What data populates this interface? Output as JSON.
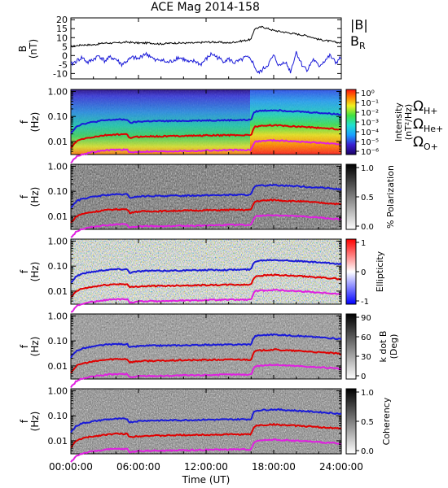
{
  "title": "ACE Mag 2014-158",
  "colors": {
    "total_field": "#000000",
    "br": "#1a1ad8",
    "h_plus": "#1a1ad8",
    "he_plus": "#e00000",
    "o_plus": "#e020e0"
  },
  "time_axis": {
    "label": "Time (UT)",
    "ticks": [
      "00:00:00",
      "06:00:00",
      "12:00:00",
      "18:00:00",
      "24:00:00"
    ],
    "range_hours": [
      0,
      24
    ]
  },
  "legend_top": {
    "b_total": "|B|",
    "b_r": "B",
    "b_r_sub": "R"
  },
  "legend_gyro": {
    "h_symbol": "Ω",
    "h_sub": "H+",
    "he_symbol": "Ω",
    "he_sub": "He+",
    "o_symbol": "Ω",
    "o_sub": "O+"
  },
  "freq_axis": {
    "label_top": "f",
    "label_bottom": "(Hz)",
    "ticks": [
      "1.00",
      "0.10",
      "0.01"
    ],
    "range_hz": [
      0.003,
      1.2
    ],
    "scale": "log"
  },
  "panels": [
    {
      "id": "B",
      "ylabel_top": "B",
      "ylabel_bottom": "(nT)",
      "yticks": [
        "20",
        "15",
        "10",
        "5",
        "0",
        "-5",
        "-10"
      ],
      "ylim": [
        -13,
        21
      ]
    },
    {
      "id": "intensity",
      "colorbar_title": "Intensity",
      "colorbar_unit": "(nT²/Hz)",
      "colorbar_ticks": [
        "10⁰",
        "10⁻¹",
        "10⁻²",
        "10⁻³",
        "10⁻⁴",
        "10⁻⁵",
        "10⁻⁶"
      ]
    },
    {
      "id": "polarization",
      "colorbar_title": "% Polarization",
      "colorbar_ticks": [
        "1.0",
        "0.5",
        "0.0"
      ]
    },
    {
      "id": "ellipticity",
      "colorbar_title": "Ellipticity",
      "colorbar_ticks": [
        "1",
        "0",
        "-1"
      ]
    },
    {
      "id": "kdotb",
      "colorbar_title": "k dot B",
      "colorbar_unit": "(Deg)",
      "colorbar_ticks": [
        "90",
        "60",
        "30",
        "0"
      ]
    },
    {
      "id": "coherency",
      "colorbar_title": "Coherency",
      "colorbar_ticks": [
        "1.0",
        "0.5",
        "0.0"
      ]
    }
  ],
  "chart_data": {
    "type": "line",
    "x_units": "hours (UT)",
    "b_total": {
      "x": [
        0,
        1,
        2,
        3,
        4,
        5,
        6,
        7,
        8,
        9,
        10,
        11,
        12,
        13,
        14,
        15,
        16,
        16.3,
        17,
        18,
        19,
        20,
        21,
        22,
        23,
        24
      ],
      "y": [
        5,
        6,
        6,
        7,
        7,
        7.5,
        7,
        7,
        6.5,
        7,
        7,
        7,
        7.5,
        7.5,
        7,
        8,
        9,
        15,
        16,
        14,
        13,
        12,
        11,
        9,
        8,
        7
      ]
    },
    "b_r": {
      "x": [
        0,
        0.5,
        1,
        1.5,
        2,
        2.5,
        3,
        3.5,
        4,
        4.5,
        5,
        5.5,
        6,
        6.5,
        7,
        7.5,
        8,
        8.5,
        9,
        9.5,
        10,
        10.5,
        11,
        11.5,
        12,
        12.5,
        13,
        13.5,
        14,
        14.5,
        15,
        15.5,
        16,
        16.3,
        16.6,
        17,
        17.5,
        18,
        18.5,
        19,
        19.5,
        20,
        20.5,
        21,
        21.5,
        22,
        22.5,
        23,
        23.5,
        24
      ],
      "y": [
        -5,
        -3,
        -1,
        -4,
        -2,
        0,
        -3,
        -1,
        -2,
        -5,
        -3,
        -1,
        -2,
        1,
        0,
        -3,
        -2,
        -4,
        -3,
        -1,
        -2,
        -4,
        -3,
        -5,
        -2,
        1,
        -1,
        -3,
        -2,
        -4,
        -3,
        -1,
        -2,
        -6,
        -10,
        -8,
        -5,
        0,
        -6,
        -3,
        -9,
        2,
        -5,
        -8,
        -2,
        -6,
        -3,
        0,
        -4,
        -1
      ]
    },
    "gyro_h_plus": {
      "x": [
        0,
        0.5,
        1,
        2,
        3,
        4,
        5,
        5.2,
        6,
        7,
        8,
        9,
        10,
        11,
        12,
        13,
        14,
        15,
        16,
        16.2,
        16.4,
        17,
        18,
        19,
        20,
        21,
        22,
        23,
        24
      ],
      "y": [
        0.022,
        0.04,
        0.05,
        0.06,
        0.07,
        0.075,
        0.075,
        0.055,
        0.062,
        0.065,
        0.065,
        0.066,
        0.067,
        0.068,
        0.07,
        0.07,
        0.071,
        0.072,
        0.073,
        0.13,
        0.16,
        0.17,
        0.18,
        0.17,
        0.16,
        0.15,
        0.14,
        0.13,
        0.12
      ]
    },
    "gyro_he_plus": {
      "x": [
        0,
        0.5,
        1,
        2,
        3,
        4,
        5,
        5.2,
        6,
        7,
        8,
        9,
        10,
        11,
        12,
        13,
        14,
        15,
        16,
        16.2,
        16.4,
        17,
        18,
        19,
        20,
        21,
        22,
        23,
        24
      ],
      "y": [
        0.0055,
        0.01,
        0.0125,
        0.015,
        0.0175,
        0.019,
        0.019,
        0.014,
        0.0155,
        0.016,
        0.016,
        0.0165,
        0.017,
        0.017,
        0.0175,
        0.0175,
        0.018,
        0.018,
        0.018,
        0.032,
        0.04,
        0.042,
        0.045,
        0.042,
        0.04,
        0.038,
        0.035,
        0.033,
        0.03
      ]
    },
    "gyro_o_plus": {
      "x": [
        0,
        0.5,
        1,
        2,
        3,
        4,
        5,
        5.2,
        6,
        7,
        8,
        9,
        10,
        11,
        12,
        13,
        14,
        15,
        16,
        16.2,
        16.4,
        17,
        18,
        19,
        20,
        21,
        22,
        23,
        24
      ],
      "y": [
        0.0014,
        0.0025,
        0.0031,
        0.0038,
        0.0044,
        0.0047,
        0.0047,
        0.0035,
        0.0039,
        0.004,
        0.004,
        0.0041,
        0.0042,
        0.0042,
        0.0044,
        0.0044,
        0.0045,
        0.0045,
        0.0045,
        0.008,
        0.01,
        0.0105,
        0.0112,
        0.0105,
        0.01,
        0.0095,
        0.0088,
        0.0083,
        0.0075
      ]
    }
  }
}
